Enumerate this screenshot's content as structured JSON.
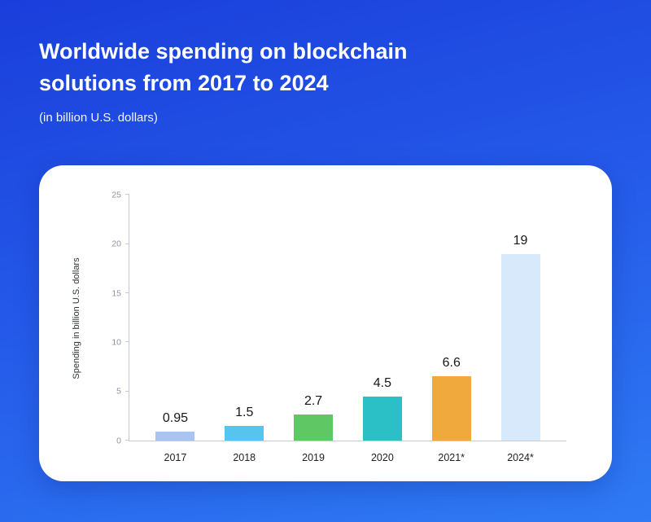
{
  "header": {
    "title_line1": "Worldwide spending on blockchain",
    "title_line2": "solutions from 2017 to 2024",
    "subtitle": "(in billion U.S. dollars)"
  },
  "chart_data": {
    "type": "bar",
    "title": "Worldwide spending on blockchain solutions from 2017 to 2024",
    "subtitle": "(in billion U.S. dollars)",
    "categories": [
      "2017",
      "2018",
      "2019",
      "2020",
      "2021*",
      "2024*"
    ],
    "values": [
      0.95,
      1.5,
      2.7,
      4.5,
      6.6,
      19
    ],
    "value_labels": [
      "0.95",
      "1.5",
      "2.7",
      "4.5",
      "6.6",
      "19"
    ],
    "bar_colors": [
      "#a9c3f2",
      "#55c4ee",
      "#5fc763",
      "#2bc0c6",
      "#f0a93c",
      "#d7e9fb"
    ],
    "xlabel": "",
    "ylabel": "Spending in billion U.S. dollars",
    "ylim": [
      0,
      25
    ],
    "yticks": [
      0,
      5,
      10,
      15,
      20,
      25
    ],
    "grid": false,
    "legend": "none",
    "colors": {
      "background_top": "#1a3edb",
      "background_bottom": "#2f7bf4",
      "card": "#ffffff",
      "axis": "#c7ccd3",
      "tick_text": "#8d939c",
      "value_text": "#15171a",
      "title_text": "#ffffff"
    }
  }
}
